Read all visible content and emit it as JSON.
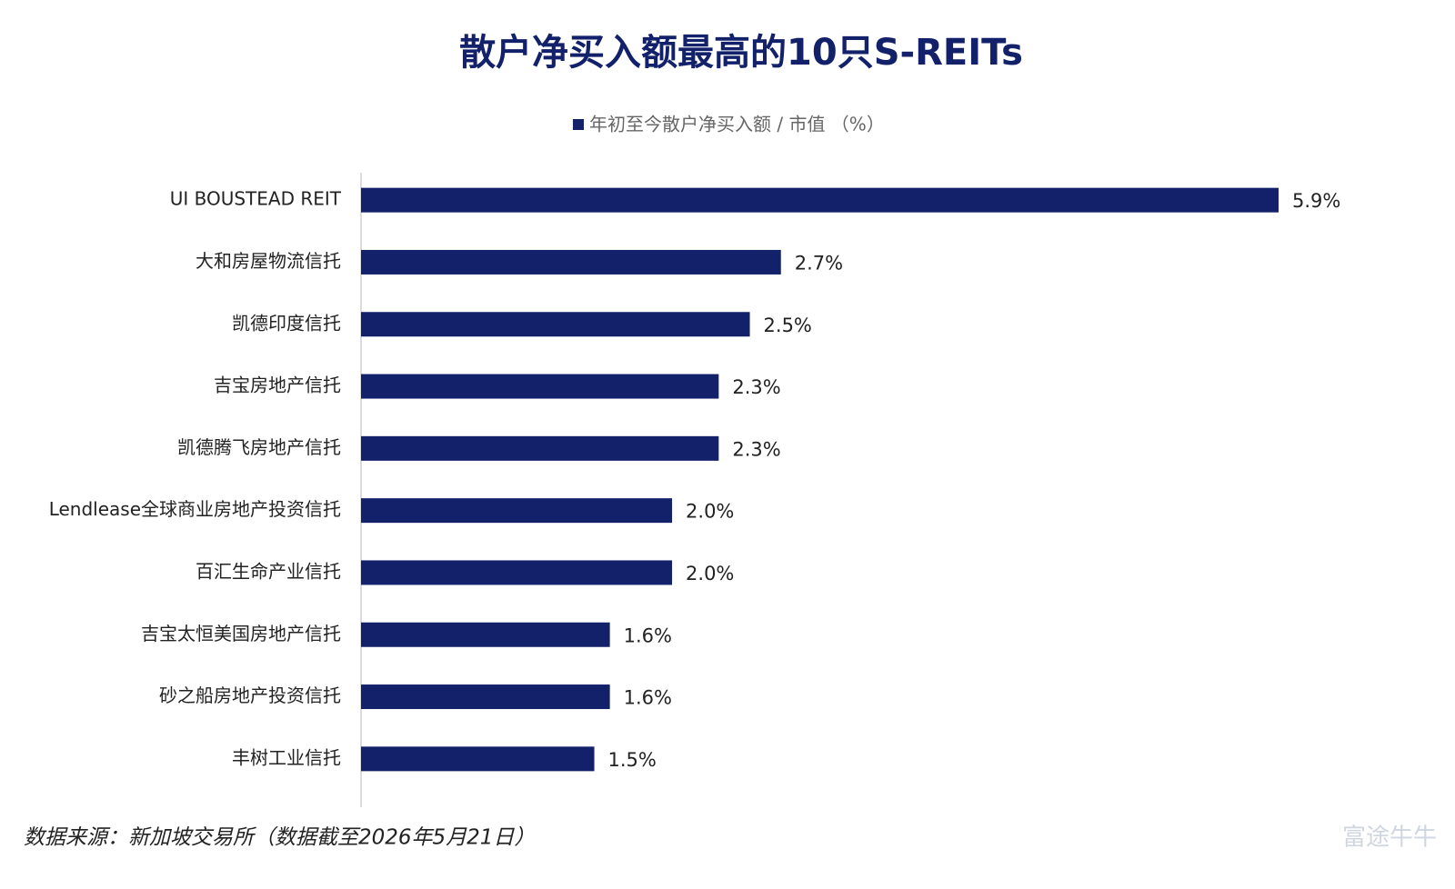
{
  "chart_data": {
    "type": "bar",
    "orientation": "horizontal",
    "title": "散户净买入额最高的10只S-REITs",
    "categories": [
      "UI BOUSTEAD REIT",
      "大和房屋物流信托",
      "凯德印度信托",
      "吉宝房地产信托",
      "凯德腾飞房地产信托",
      "Lendlease全球商业房地产投资信托",
      "百汇生命产业信托",
      "吉宝太恒美国房地产信托",
      "砂之船房地产投资信托",
      "丰树工业信托"
    ],
    "series": [
      {
        "name": "年初至今散户净买入额 / 市值 （%）",
        "color": "#13216a",
        "values": [
          5.9,
          2.7,
          2.5,
          2.3,
          2.3,
          2.0,
          2.0,
          1.6,
          1.6,
          1.5
        ],
        "value_labels": [
          "5.9%",
          "2.7%",
          "2.5%",
          "2.3%",
          "2.3%",
          "2.0%",
          "2.0%",
          "1.6%",
          "1.6%",
          "1.5%"
        ]
      }
    ],
    "legend": "top",
    "source": "数据来源：新加坡交易所（数据截至2026年5月21日）",
    "watermark": "富途牛牛"
  }
}
